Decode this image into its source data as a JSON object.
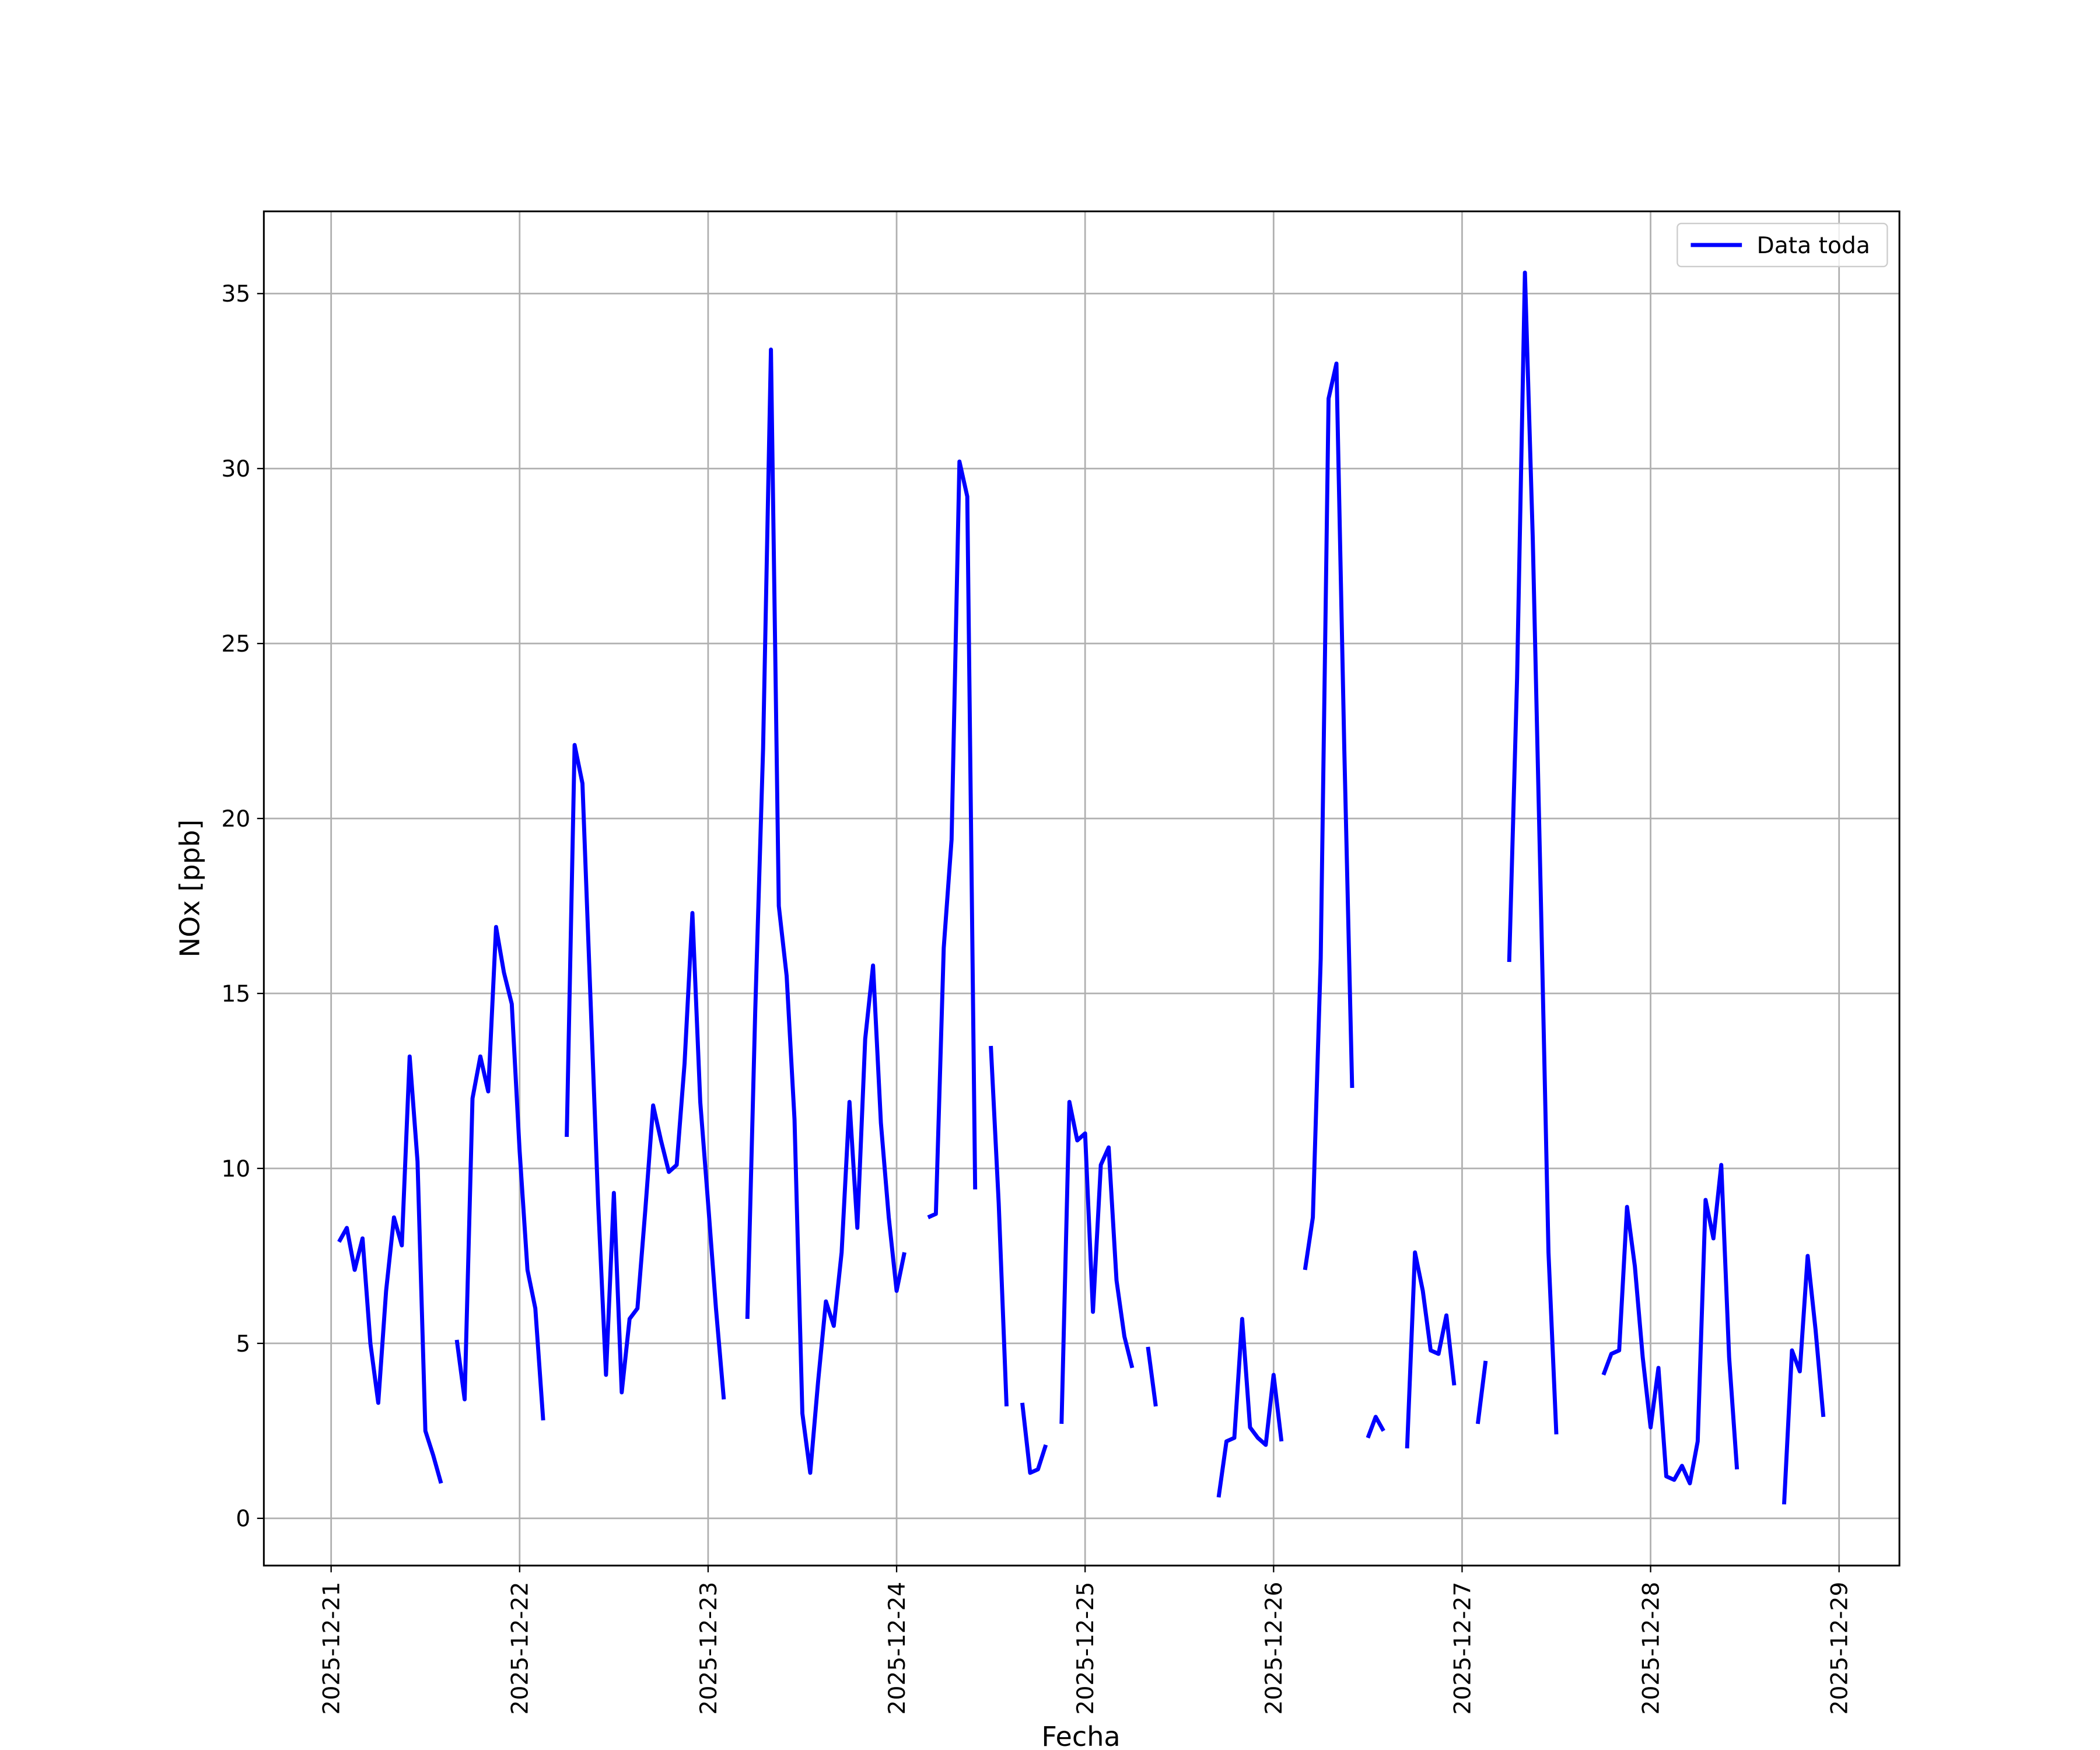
{
  "chart_data": {
    "type": "line",
    "xlabel": "Fecha",
    "ylabel": "NOx [ppb]",
    "x": [
      "2025-12-21 01:00",
      "2025-12-21 02:00",
      "2025-12-21 03:00",
      "2025-12-21 04:00",
      "2025-12-21 05:00",
      "2025-12-21 06:00",
      "2025-12-21 07:00",
      "2025-12-21 08:00",
      "2025-12-21 09:00",
      "2025-12-21 10:00",
      "2025-12-21 11:00",
      "2025-12-21 12:00",
      "2025-12-21 13:00",
      "2025-12-21 14:00",
      "2025-12-21 15:00",
      "2025-12-21 16:00",
      "2025-12-21 17:00",
      "2025-12-21 18:00",
      "2025-12-21 19:00",
      "2025-12-21 20:00",
      "2025-12-21 21:00",
      "2025-12-21 22:00",
      "2025-12-21 23:00",
      "2025-12-22 00:00",
      "2025-12-22 01:00",
      "2025-12-22 02:00",
      "2025-12-22 03:00",
      "2025-12-22 04:00",
      "2025-12-22 05:00",
      "2025-12-22 06:00",
      "2025-12-22 07:00",
      "2025-12-22 08:00",
      "2025-12-22 09:00",
      "2025-12-22 10:00",
      "2025-12-22 11:00",
      "2025-12-22 12:00",
      "2025-12-22 13:00",
      "2025-12-22 14:00",
      "2025-12-22 15:00",
      "2025-12-22 16:00",
      "2025-12-22 17:00",
      "2025-12-22 18:00",
      "2025-12-22 19:00",
      "2025-12-22 20:00",
      "2025-12-22 21:00",
      "2025-12-22 22:00",
      "2025-12-22 23:00",
      "2025-12-23 00:00",
      "2025-12-23 01:00",
      "2025-12-23 02:00",
      "2025-12-23 03:00",
      "2025-12-23 04:00",
      "2025-12-23 05:00",
      "2025-12-23 06:00",
      "2025-12-23 07:00",
      "2025-12-23 08:00",
      "2025-12-23 09:00",
      "2025-12-23 10:00",
      "2025-12-23 11:00",
      "2025-12-23 12:00",
      "2025-12-23 13:00",
      "2025-12-23 14:00",
      "2025-12-23 15:00",
      "2025-12-23 16:00",
      "2025-12-23 17:00",
      "2025-12-23 18:00",
      "2025-12-23 19:00",
      "2025-12-23 20:00",
      "2025-12-23 21:00",
      "2025-12-23 22:00",
      "2025-12-23 23:00",
      "2025-12-24 00:00",
      "2025-12-24 01:00",
      "2025-12-24 02:00",
      "2025-12-24 03:00",
      "2025-12-24 04:00",
      "2025-12-24 05:00",
      "2025-12-24 06:00",
      "2025-12-24 07:00",
      "2025-12-24 08:00",
      "2025-12-24 09:00",
      "2025-12-24 10:00",
      "2025-12-24 11:00",
      "2025-12-24 12:00",
      "2025-12-24 13:00",
      "2025-12-24 14:00",
      "2025-12-24 15:00",
      "2025-12-24 16:00",
      "2025-12-24 17:00",
      "2025-12-24 18:00",
      "2025-12-24 19:00",
      "2025-12-24 20:00",
      "2025-12-24 21:00",
      "2025-12-24 22:00",
      "2025-12-24 23:00",
      "2025-12-25 00:00",
      "2025-12-25 01:00",
      "2025-12-25 02:00",
      "2025-12-25 03:00",
      "2025-12-25 04:00",
      "2025-12-25 05:00",
      "2025-12-25 06:00",
      "2025-12-25 07:00",
      "2025-12-25 08:00",
      "2025-12-25 09:00",
      "2025-12-25 10:00",
      "2025-12-25 11:00",
      "2025-12-25 12:00",
      "2025-12-25 13:00",
      "2025-12-25 14:00",
      "2025-12-25 15:00",
      "2025-12-25 16:00",
      "2025-12-25 17:00",
      "2025-12-25 18:00",
      "2025-12-25 19:00",
      "2025-12-25 20:00",
      "2025-12-25 21:00",
      "2025-12-25 22:00",
      "2025-12-25 23:00",
      "2025-12-26 00:00",
      "2025-12-26 01:00",
      "2025-12-26 02:00",
      "2025-12-26 03:00",
      "2025-12-26 04:00",
      "2025-12-26 05:00",
      "2025-12-26 06:00",
      "2025-12-26 07:00",
      "2025-12-26 08:00",
      "2025-12-26 09:00",
      "2025-12-26 10:00",
      "2025-12-26 11:00",
      "2025-12-26 12:00",
      "2025-12-26 13:00",
      "2025-12-26 14:00",
      "2025-12-26 15:00",
      "2025-12-26 16:00",
      "2025-12-26 17:00",
      "2025-12-26 18:00",
      "2025-12-26 19:00",
      "2025-12-26 20:00",
      "2025-12-26 21:00",
      "2025-12-26 22:00",
      "2025-12-26 23:00",
      "2025-12-27 00:00",
      "2025-12-27 01:00",
      "2025-12-27 02:00",
      "2025-12-27 03:00",
      "2025-12-27 04:00",
      "2025-12-27 05:00",
      "2025-12-27 06:00",
      "2025-12-27 07:00",
      "2025-12-27 08:00",
      "2025-12-27 09:00",
      "2025-12-27 10:00",
      "2025-12-27 11:00",
      "2025-12-27 12:00",
      "2025-12-27 13:00",
      "2025-12-27 14:00",
      "2025-12-27 15:00",
      "2025-12-27 16:00",
      "2025-12-27 17:00",
      "2025-12-27 18:00",
      "2025-12-27 19:00",
      "2025-12-27 20:00",
      "2025-12-27 21:00",
      "2025-12-27 22:00",
      "2025-12-27 23:00",
      "2025-12-28 00:00",
      "2025-12-28 01:00",
      "2025-12-28 02:00",
      "2025-12-28 03:00",
      "2025-12-28 04:00",
      "2025-12-28 05:00",
      "2025-12-28 06:00",
      "2025-12-28 07:00",
      "2025-12-28 08:00",
      "2025-12-28 09:00",
      "2025-12-28 10:00",
      "2025-12-28 11:00",
      "2025-12-28 12:00",
      "2025-12-28 13:00",
      "2025-12-28 14:00",
      "2025-12-28 15:00",
      "2025-12-28 16:00",
      "2025-12-28 17:00",
      "2025-12-28 18:00",
      "2025-12-28 19:00",
      "2025-12-28 20:00",
      "2025-12-28 21:00",
      "2025-12-28 22:00"
    ],
    "series": [
      {
        "name": "Data toda",
        "color": "#0000ff",
        "values": [
          7.9,
          8.3,
          7.1,
          8.0,
          5.0,
          3.3,
          6.5,
          8.6,
          7.8,
          13.2,
          10.2,
          2.5,
          1.8,
          1.0,
          null,
          5.1,
          3.4,
          12.0,
          13.2,
          12.2,
          16.9,
          15.6,
          14.7,
          10.5,
          7.1,
          6.0,
          2.8,
          null,
          null,
          10.9,
          22.1,
          21.0,
          15.0,
          9.0,
          4.1,
          9.3,
          3.6,
          5.7,
          6.0,
          8.8,
          11.8,
          10.8,
          9.9,
          10.1,
          13.0,
          17.3,
          11.9,
          9.0,
          6.0,
          3.4,
          null,
          null,
          5.7,
          14.5,
          22.0,
          33.4,
          17.5,
          15.5,
          11.4,
          3.0,
          1.3,
          3.9,
          6.2,
          5.5,
          7.6,
          11.9,
          8.3,
          13.7,
          15.8,
          11.3,
          8.6,
          6.5,
          7.6,
          null,
          null,
          8.6,
          8.7,
          16.3,
          19.4,
          30.2,
          29.2,
          9.4,
          null,
          13.5,
          9.0,
          3.2,
          null,
          3.3,
          1.3,
          1.4,
          2.1,
          null,
          2.7,
          11.9,
          10.8,
          11.0,
          5.9,
          10.1,
          10.6,
          6.8,
          5.2,
          4.3,
          null,
          4.9,
          3.2,
          null,
          null,
          null,
          null,
          null,
          null,
          null,
          0.6,
          2.2,
          2.3,
          5.7,
          2.6,
          2.3,
          2.1,
          4.1,
          2.2,
          null,
          null,
          7.1,
          8.6,
          16.0,
          32.0,
          33.0,
          22.0,
          12.3,
          null,
          2.3,
          2.9,
          2.5,
          null,
          null,
          2.0,
          7.6,
          6.5,
          4.8,
          4.7,
          5.8,
          3.8,
          null,
          null,
          2.7,
          4.5,
          null,
          null,
          15.9,
          24.0,
          35.6,
          28.0,
          18.0,
          7.6,
          2.4,
          null,
          null,
          null,
          null,
          null,
          4.1,
          4.7,
          4.8,
          8.9,
          7.2,
          4.6,
          2.6,
          4.3,
          1.2,
          1.1,
          1.5,
          1.0,
          2.2,
          9.1,
          8.0,
          10.1,
          4.6,
          1.4,
          null,
          null,
          null,
          null,
          null,
          0.4,
          4.8,
          4.2,
          7.5,
          5.4,
          2.9
        ]
      }
    ],
    "xlim": [
      "2025-12-20 15:26",
      "2025-12-29 07:41"
    ],
    "xticks": [
      "2025-12-21",
      "2025-12-22",
      "2025-12-23",
      "2025-12-24",
      "2025-12-25",
      "2025-12-26",
      "2025-12-27",
      "2025-12-28",
      "2025-12-29"
    ],
    "ylim": [
      -1.35,
      37.35
    ],
    "yticks": [
      0,
      5,
      10,
      15,
      20,
      25,
      30,
      35
    ],
    "grid": true,
    "legend": "upper right"
  }
}
